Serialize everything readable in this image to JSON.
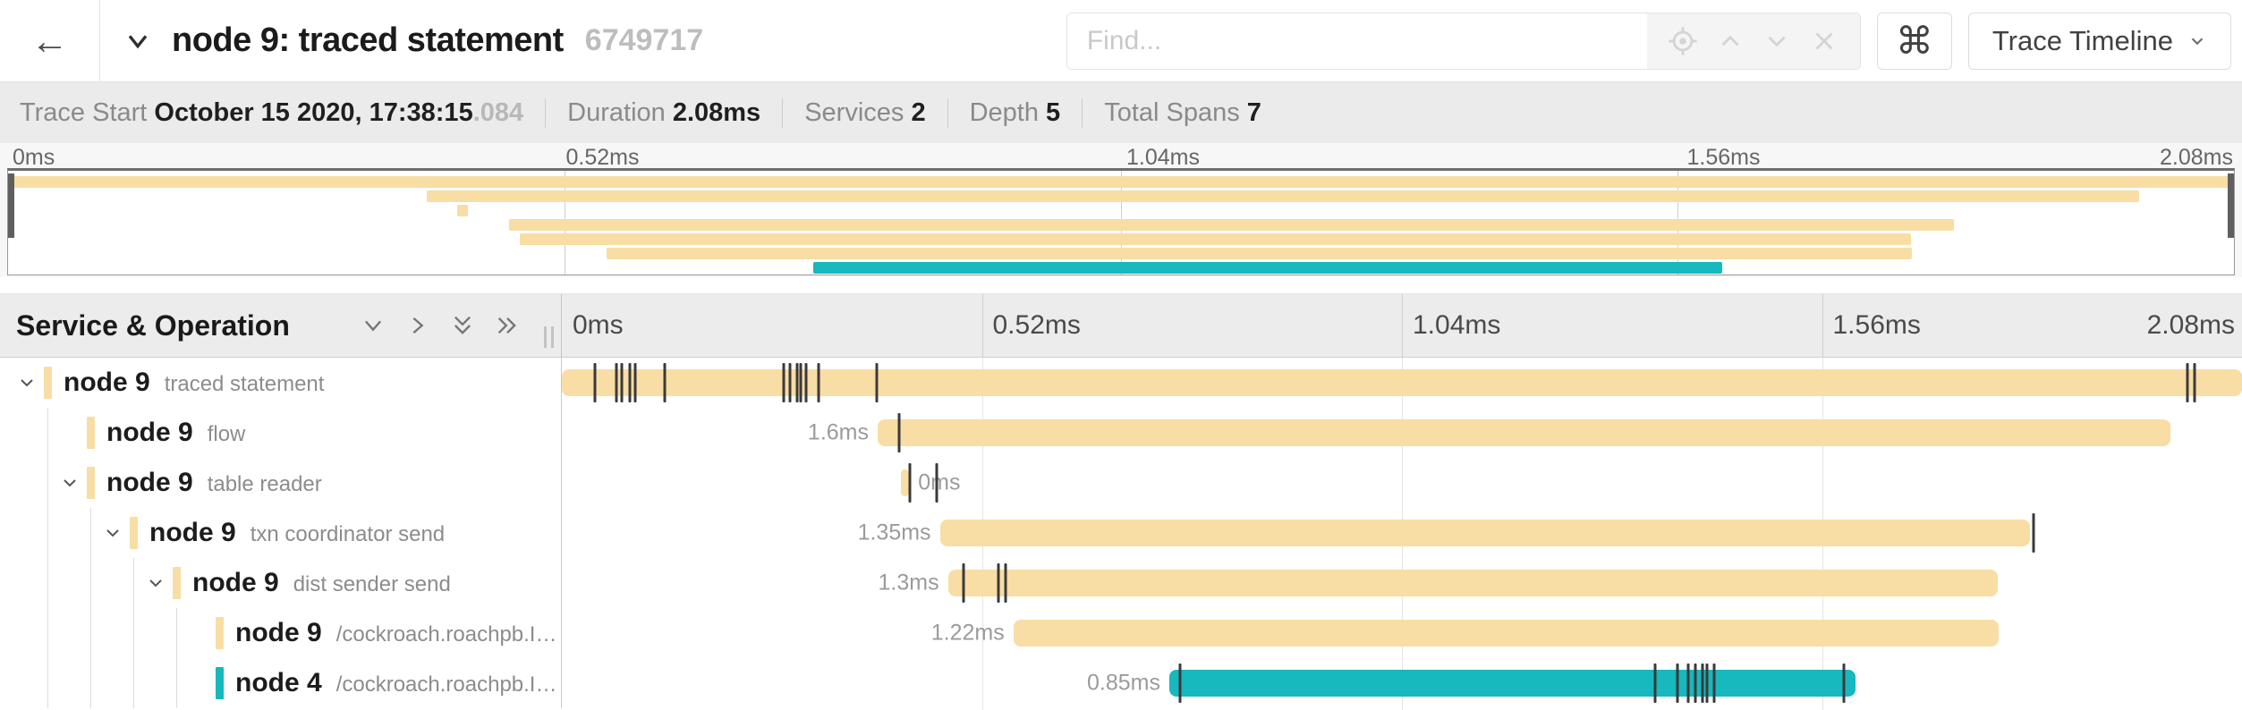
{
  "header": {
    "back_glyph": "←",
    "title": "node 9: traced statement",
    "trace_id": "6749717",
    "find_placeholder": "Find...",
    "command_glyph": "⌘",
    "view_mode": "Trace Timeline"
  },
  "summary": {
    "items": [
      {
        "label": "Trace Start",
        "value": "October 15 2020, 17:38:15",
        "suffix": ".084"
      },
      {
        "label": "Duration",
        "value": "2.08ms"
      },
      {
        "label": "Services",
        "value": "2"
      },
      {
        "label": "Depth",
        "value": "5"
      },
      {
        "label": "Total Spans",
        "value": "7"
      }
    ]
  },
  "minimap": {
    "ticks": [
      "0ms",
      "0.52ms",
      "1.04ms",
      "1.56ms",
      "2.08ms"
    ]
  },
  "timeline": {
    "header": "Service & Operation",
    "ticks": [
      "0ms",
      "0.52ms",
      "1.04ms",
      "1.56ms",
      "2.08ms"
    ],
    "total_ms": 2.08,
    "colors": {
      "yellow": "#f8dda4",
      "teal": "#17b8be"
    },
    "rows": [
      {
        "service": "node 9",
        "operation": "traced statement",
        "depth": 0,
        "chevron": true,
        "color": "#f8dda4",
        "start_ms": 0,
        "duration_ms": 2.08,
        "label": "",
        "label_side": "none",
        "ticks_ms": [
          0.041,
          0.068,
          0.074,
          0.084,
          0.091,
          0.127,
          0.275,
          0.282,
          0.291,
          0.296,
          0.302,
          0.318,
          0.39,
          2.012,
          2.021
        ]
      },
      {
        "service": "node 9",
        "operation": "flow",
        "depth": 1,
        "chevron": false,
        "color": "#f8dda4",
        "start_ms": 0.391,
        "duration_ms": 1.6,
        "label": "1.6ms",
        "label_side": "left",
        "ticks_ms": [
          0.417
        ]
      },
      {
        "service": "node 9",
        "operation": "table reader",
        "depth": 1,
        "chevron": true,
        "color": "#f8dda4",
        "start_ms": 0.42,
        "duration_ms": 0.01,
        "label": "0ms",
        "label_side": "right",
        "ticks_ms": [
          0.431,
          0.464
        ]
      },
      {
        "service": "node 9",
        "operation": "txn coordinator send",
        "depth": 2,
        "chevron": true,
        "color": "#f8dda4",
        "start_ms": 0.468,
        "duration_ms": 1.35,
        "label": "1.35ms",
        "label_side": "left",
        "ticks_ms": [
          1.822
        ]
      },
      {
        "service": "node 9",
        "operation": "dist sender send",
        "depth": 3,
        "chevron": true,
        "color": "#f8dda4",
        "start_ms": 0.478,
        "duration_ms": 1.3,
        "label": "1.3ms",
        "label_side": "left",
        "ticks_ms": [
          0.497,
          0.54,
          0.549
        ]
      },
      {
        "service": "node 9",
        "operation": "/cockroach.roachpb.I…",
        "depth": 4,
        "chevron": false,
        "color": "#f8dda4",
        "start_ms": 0.559,
        "duration_ms": 1.22,
        "label": "1.22ms",
        "label_side": "left",
        "ticks_ms": []
      },
      {
        "service": "node 4",
        "operation": "/cockroach.roachpb.I…",
        "depth": 4,
        "chevron": false,
        "color": "#17b8be",
        "start_ms": 0.752,
        "duration_ms": 0.85,
        "label": "0.85ms",
        "label_side": "left",
        "ticks_ms": [
          0.765,
          1.353,
          1.381,
          1.394,
          1.403,
          1.412,
          1.418,
          1.427,
          1.587
        ]
      }
    ]
  }
}
